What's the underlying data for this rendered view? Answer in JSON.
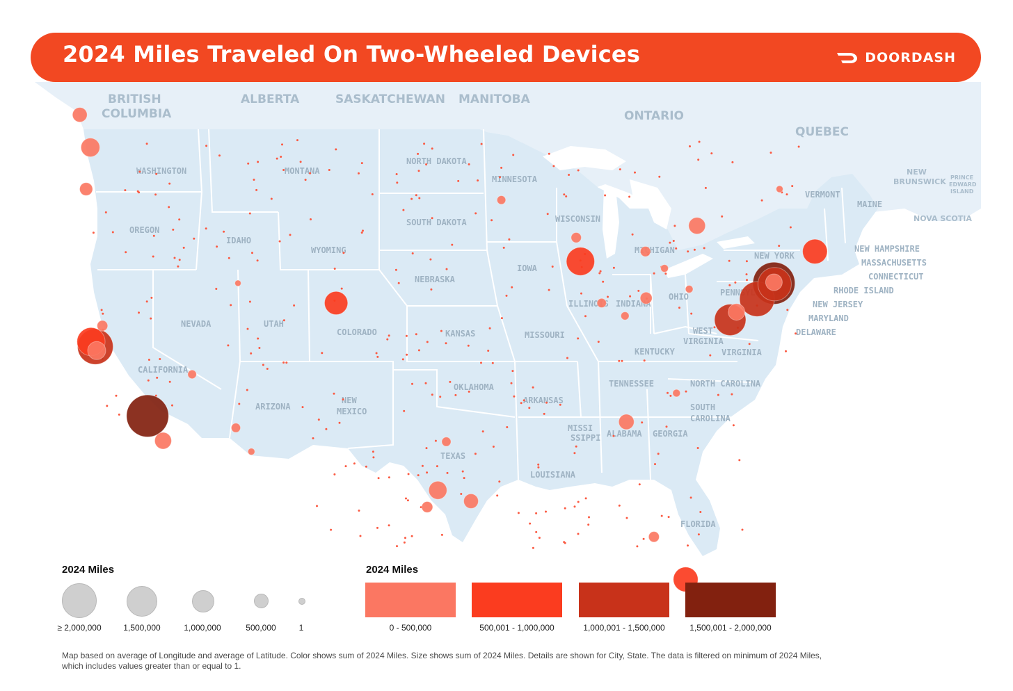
{
  "header": {
    "title": "2024 Miles Traveled On Two-Wheeled Devices",
    "brand": "DOORDASH",
    "brand_icon": "doordash-dash-icon",
    "colors": {
      "banner": "#f24822",
      "text": "#ffffff"
    }
  },
  "map": {
    "land_color": "#dbeaf5",
    "border_color": "#ffffff",
    "region_labels": [
      "BRITISH",
      "COLUMBIA",
      "ALBERTA",
      "SASKATCHEWAN",
      "MANITOBA",
      "ONTARIO",
      "QUEBEC",
      "NEW",
      "BRUNSWICK",
      "PRINCE",
      "EDWARD",
      "ISLAND",
      "NOVA SCOTIA"
    ],
    "state_labels": [
      "WASHINGTON",
      "OREGON",
      "CALIFORNIA",
      "NEVADA",
      "IDAHO",
      "MONTANA",
      "WYOMING",
      "UTAH",
      "ARIZONA",
      "COLORADO",
      "NEW",
      "MEXICO",
      "NORTH DAKOTA",
      "SOUTH DAKOTA",
      "NEBRASKA",
      "KANSAS",
      "OKLAHOMA",
      "TEXAS",
      "MINNESOTA",
      "IOWA",
      "MISSOURI",
      "ARKANSAS",
      "LOUISIANA",
      "WISCONSIN",
      "ILLINOIS",
      "MICHIGAN",
      "INDIANA",
      "OHIO",
      "KENTUCKY",
      "TENNESSEE",
      "MISSI",
      "SSIPPI",
      "ALABAMA",
      "GEORGIA",
      "FLORIDA",
      "SOUTH",
      "CAROLINA",
      "NORTH CAROLINA",
      "VIRGINIA",
      "WEST",
      "VIRGINIA",
      "PENNSYLVANIA",
      "NEW YORK",
      "VERMONT",
      "MAINE",
      "NEW HAMPSHIRE",
      "MASSACHUSETTS",
      "CONNECTICUT",
      "RHODE ISLAND",
      "NEW JERSEY",
      "MARYLAND",
      "DELAWARE"
    ]
  },
  "legend_size": {
    "title": "2024 Miles",
    "items": [
      {
        "label": "≥ 2,000,000",
        "value": 2000000
      },
      {
        "label": "1,500,000",
        "value": 1500000
      },
      {
        "label": "1,000,000",
        "value": 1000000
      },
      {
        "label": "500,000",
        "value": 500000
      },
      {
        "label": "1",
        "value": 1
      }
    ],
    "circle_color": "#cfcfcf"
  },
  "legend_color": {
    "title": "2024 Miles",
    "bins": [
      {
        "label": "0 - 500,000",
        "color": "#fb7762"
      },
      {
        "label": "500,001 - 1,000,000",
        "color": "#fb3c1f"
      },
      {
        "label": "1,000,001 - 1,500,000",
        "color": "#c8321a"
      },
      {
        "label": "1,500,001 - 2,000,000",
        "color": "#82210f"
      }
    ]
  },
  "footnote": "Map based on average of Longitude and average of Latitude.  Color shows sum of 2024 Miles.  Size shows sum of 2024 Miles.  Details are shown for City, State. The data is filtered on minimum of 2024 Miles, which includes values greater than or equal to 1.",
  "chart_data": {
    "type": "scatter",
    "encoding": {
      "x": "longitude",
      "y": "latitude",
      "size": "2024 Miles",
      "color": "2024 Miles"
    },
    "points": [
      {
        "lon": -118.3,
        "lat": 34.05,
        "miles": 1900000
      },
      {
        "lon": -122.0,
        "lat": 37.55,
        "miles": 1350000
      },
      {
        "lon": -122.3,
        "lat": 37.8,
        "miles": 850000
      },
      {
        "lon": -121.9,
        "lat": 37.35,
        "miles": 350000
      },
      {
        "lon": -121.5,
        "lat": 38.6,
        "miles": 120000
      },
      {
        "lon": -117.2,
        "lat": 32.8,
        "miles": 300000
      },
      {
        "lon": -122.35,
        "lat": 47.6,
        "miles": 380000
      },
      {
        "lon": -122.65,
        "lat": 45.5,
        "miles": 180000
      },
      {
        "lon": -123.1,
        "lat": 49.25,
        "miles": 230000
      },
      {
        "lon": -115.15,
        "lat": 36.15,
        "miles": 80000
      },
      {
        "lon": -112.05,
        "lat": 33.45,
        "miles": 90000
      },
      {
        "lon": -110.95,
        "lat": 32.25,
        "miles": 50000
      },
      {
        "lon": -111.9,
        "lat": 40.75,
        "miles": 40000
      },
      {
        "lon": -104.95,
        "lat": 39.75,
        "miles": 580000
      },
      {
        "lon": -97.75,
        "lat": 30.3,
        "miles": 350000
      },
      {
        "lon": -95.4,
        "lat": 29.75,
        "miles": 230000
      },
      {
        "lon": -98.5,
        "lat": 29.45,
        "miles": 130000
      },
      {
        "lon": -97.15,
        "lat": 32.75,
        "miles": 90000
      },
      {
        "lon": -93.25,
        "lat": 44.95,
        "miles": 80000
      },
      {
        "lon": -87.65,
        "lat": 41.85,
        "miles": 850000
      },
      {
        "lon": -87.95,
        "lat": 43.05,
        "miles": 110000
      },
      {
        "lon": -83.05,
        "lat": 42.35,
        "miles": 110000
      },
      {
        "lon": -86.15,
        "lat": 39.75,
        "miles": 90000
      },
      {
        "lon": -84.5,
        "lat": 39.1,
        "miles": 70000
      },
      {
        "lon": -83.0,
        "lat": 40.0,
        "miles": 150000
      },
      {
        "lon": -81.7,
        "lat": 41.5,
        "miles": 60000
      },
      {
        "lon": -79.95,
        "lat": 40.45,
        "miles": 60000
      },
      {
        "lon": -79.4,
        "lat": 43.65,
        "miles": 300000
      },
      {
        "lon": -84.4,
        "lat": 33.75,
        "miles": 250000
      },
      {
        "lon": -80.85,
        "lat": 35.2,
        "miles": 60000
      },
      {
        "lon": -71.05,
        "lat": 42.35,
        "miles": 650000
      },
      {
        "lon": -73.95,
        "lat": 40.75,
        "miles": 1900000
      },
      {
        "lon": -73.9,
        "lat": 40.7,
        "miles": 1200000
      },
      {
        "lon": -73.95,
        "lat": 40.8,
        "miles": 300000
      },
      {
        "lon": -75.15,
        "lat": 39.95,
        "miles": 1300000
      },
      {
        "lon": -77.05,
        "lat": 38.9,
        "miles": 1050000
      },
      {
        "lon": -76.6,
        "lat": 39.3,
        "miles": 300000
      },
      {
        "lon": -80.2,
        "lat": 25.8,
        "miles": 650000
      },
      {
        "lon": -82.45,
        "lat": 27.95,
        "miles": 120000
      },
      {
        "lon": -73.55,
        "lat": 45.5,
        "miles": 50000
      }
    ]
  }
}
